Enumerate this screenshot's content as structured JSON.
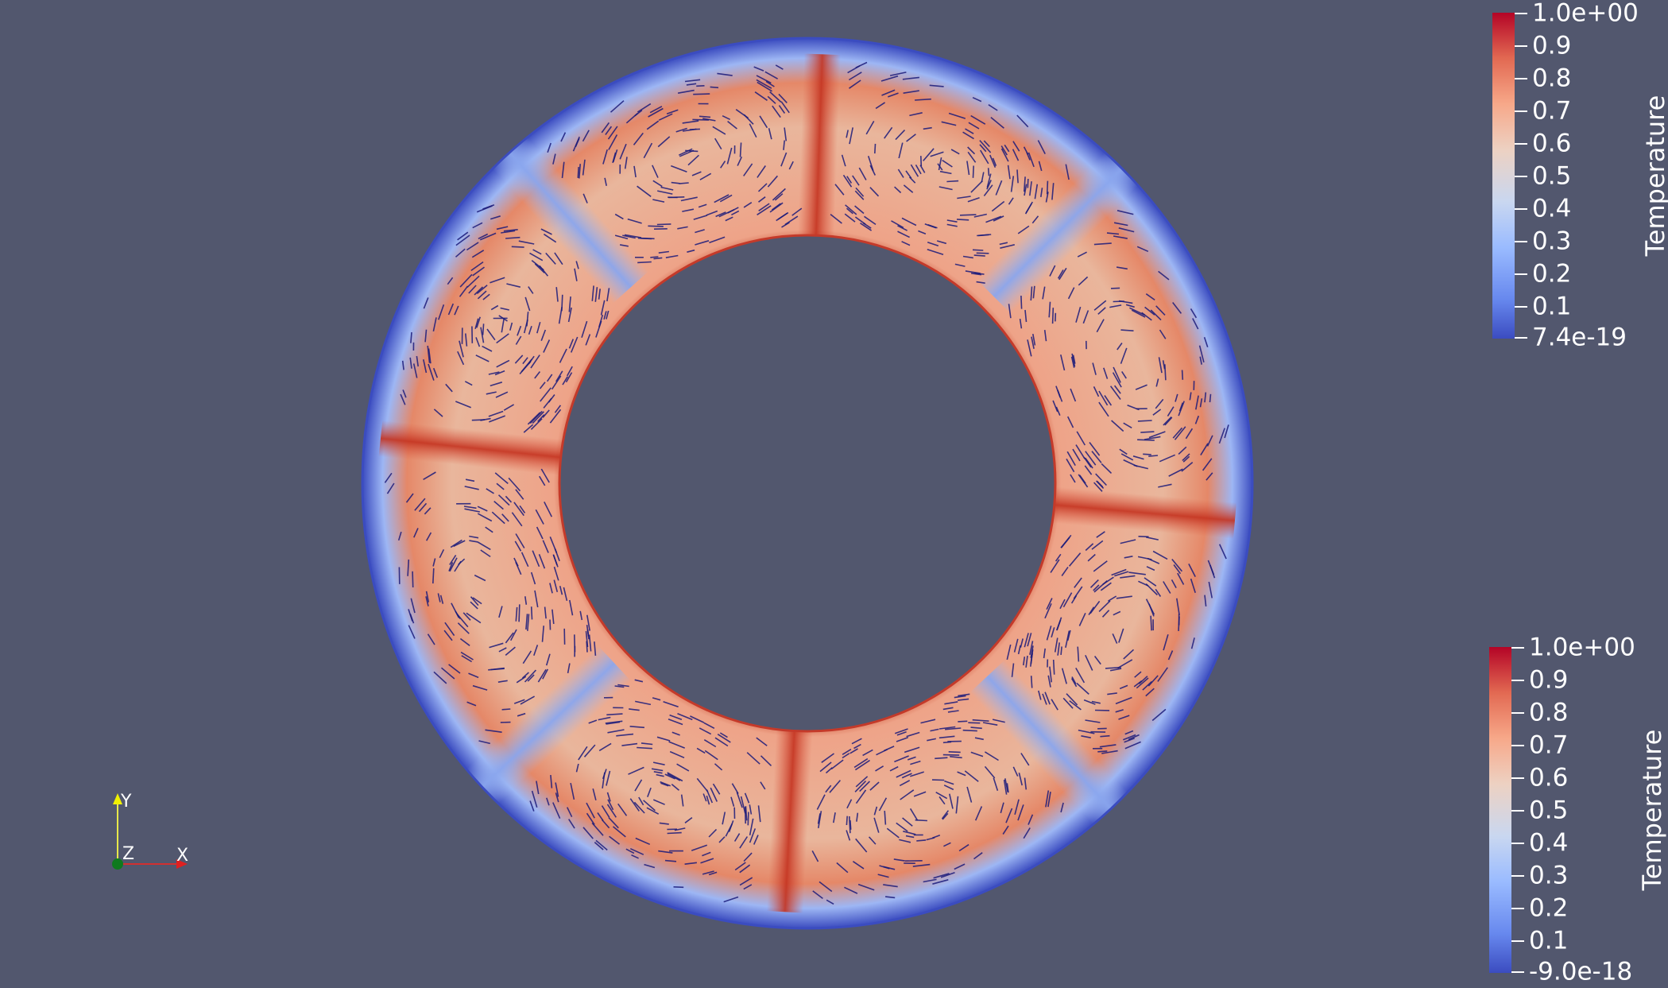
{
  "scalar_bars": [
    {
      "title": "Temperature",
      "labels": [
        "1.0e+00",
        "0.9",
        "0.8",
        "0.7",
        "0.6",
        "0.5",
        "0.4",
        "0.3",
        "0.2",
        "0.1",
        "7.4e-19"
      ]
    },
    {
      "title": "Temperature",
      "labels": [
        "1.0e+00",
        "0.9",
        "0.8",
        "0.7",
        "0.6",
        "0.5",
        "0.4",
        "0.3",
        "0.2",
        "0.1",
        "-9.0e-18"
      ]
    }
  ],
  "axes": {
    "x": "X",
    "y": "Y",
    "z": "Z"
  },
  "colors": {
    "background": "#52576e",
    "vector_arrows": "#1a1a7a",
    "cold": "#3b4cc0",
    "warm": "#e9987a",
    "hot": "#b40426"
  }
}
